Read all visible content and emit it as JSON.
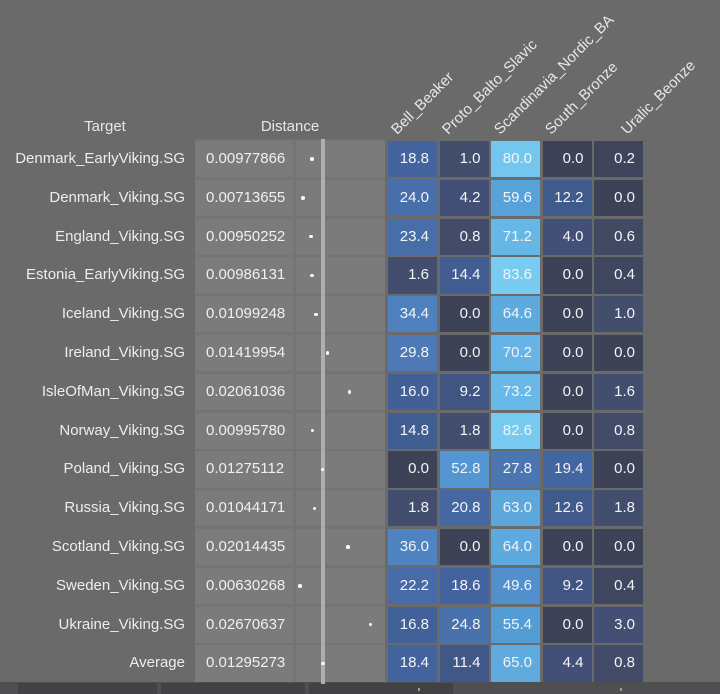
{
  "chart_data": {
    "type": "heatmap",
    "title": "",
    "target_label": "Target",
    "distance_label": "Distance",
    "columns": [
      "Bell_Beaker",
      "Proto_Balto_Slavic",
      "Scandinavia_Nordic_BA",
      "South_Bronze",
      "Uralic_Beonze"
    ],
    "rows": [
      {
        "target": "Denmark_EarlyViking.SG",
        "distance": "0.00977866",
        "values": [
          18.8,
          1.0,
          80.0,
          0.0,
          0.2
        ]
      },
      {
        "target": "Denmark_Viking.SG",
        "distance": "0.00713655",
        "values": [
          24.0,
          4.2,
          59.6,
          12.2,
          0.0
        ]
      },
      {
        "target": "England_Viking.SG",
        "distance": "0.00950252",
        "values": [
          23.4,
          0.8,
          71.2,
          4.0,
          0.6
        ]
      },
      {
        "target": "Estonia_EarlyViking.SG",
        "distance": "0.00986131",
        "values": [
          1.6,
          14.4,
          83.6,
          0.0,
          0.4
        ]
      },
      {
        "target": "Iceland_Viking.SG",
        "distance": "0.01099248",
        "values": [
          34.4,
          0.0,
          64.6,
          0.0,
          1.0
        ]
      },
      {
        "target": "Ireland_Viking.SG",
        "distance": "0.01419954",
        "values": [
          29.8,
          0.0,
          70.2,
          0.0,
          0.0
        ]
      },
      {
        "target": "IsleOfMan_Viking.SG",
        "distance": "0.02061036",
        "values": [
          16.0,
          9.2,
          73.2,
          0.0,
          1.6
        ]
      },
      {
        "target": "Norway_Viking.SG",
        "distance": "0.00995780",
        "values": [
          14.8,
          1.8,
          82.6,
          0.0,
          0.8
        ]
      },
      {
        "target": "Poland_Viking.SG",
        "distance": "0.01275112",
        "values": [
          0.0,
          52.8,
          27.8,
          19.4,
          0.0
        ]
      },
      {
        "target": "Russia_Viking.SG",
        "distance": "0.01044171",
        "values": [
          1.8,
          20.8,
          63.0,
          12.6,
          1.8
        ]
      },
      {
        "target": "Scotland_Viking.SG",
        "distance": "0.02014435",
        "values": [
          36.0,
          0.0,
          64.0,
          0.0,
          0.0
        ]
      },
      {
        "target": "Sweden_Viking.SG",
        "distance": "0.00630268",
        "values": [
          22.2,
          18.6,
          49.6,
          9.2,
          0.4
        ]
      },
      {
        "target": "Ukraine_Viking.SG",
        "distance": "0.02670637",
        "values": [
          16.8,
          24.8,
          55.4,
          0.0,
          3.0
        ]
      },
      {
        "target": "Average",
        "distance": "0.01295273",
        "values": [
          18.4,
          11.4,
          65.0,
          4.4,
          0.8
        ]
      }
    ],
    "value_range": [
      0,
      100
    ],
    "distance_axis": {
      "min": 0,
      "max": 0.03,
      "reference_line": "average_distance"
    }
  },
  "colors": {
    "background": "#6a6a6a",
    "band": "#747474",
    "distance_cell": "#7b7b7b",
    "stripe": "#aeaeae",
    "dot": "#ffffff",
    "header_text": "#e7e7e7",
    "label_text": "#ededed",
    "cell_text": "#f4f4f6",
    "footer": "#4f4f51",
    "footer_segment": "#424245",
    "heat_stops": [
      [
        0,
        "#3d4256"
      ],
      [
        1,
        "#434d6c"
      ],
      [
        5,
        "#42517a"
      ],
      [
        10,
        "#405684"
      ],
      [
        15,
        "#415e93"
      ],
      [
        19,
        "#43649f"
      ],
      [
        25,
        "#4971ac"
      ],
      [
        30,
        "#4d7ab7"
      ],
      [
        36,
        "#4f83c1"
      ],
      [
        50,
        "#5190cd"
      ],
      [
        55,
        "#549bd4"
      ],
      [
        60,
        "#58a3da"
      ],
      [
        65,
        "#5fabdf"
      ],
      [
        73,
        "#68b9e8"
      ],
      [
        80,
        "#73c7ee"
      ],
      [
        84,
        "#79ccf1"
      ]
    ]
  }
}
